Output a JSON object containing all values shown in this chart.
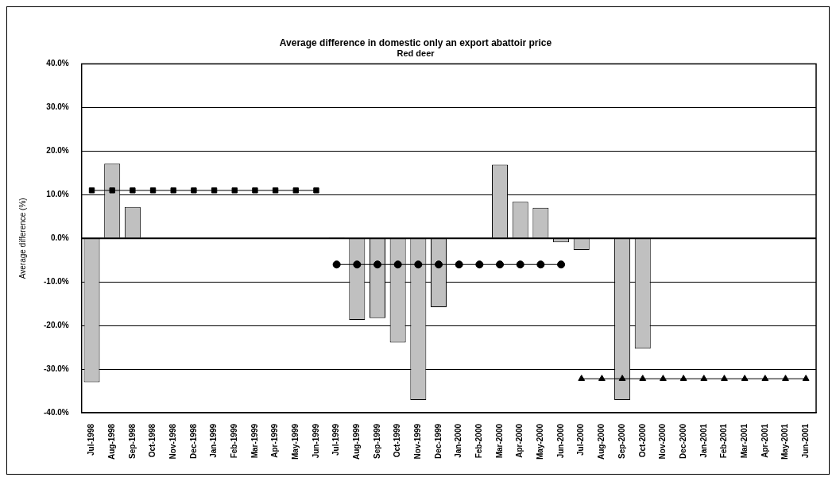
{
  "chart_data": {
    "type": "bar",
    "title": "Average difference in domestic only an export abattoir price",
    "subtitle": "Red deer",
    "ylabel": "Average difference (%)",
    "categories": [
      "Jul-1998",
      "Aug-1998",
      "Sep-1998",
      "Oct-1998",
      "Nov-1998",
      "Dec-1998",
      "Jan-1999",
      "Feb-1999",
      "Mar-1999",
      "Apr-1999",
      "May-1999",
      "Jun-1999",
      "Jul-1999",
      "Aug-1999",
      "Sep-1999",
      "Oct-1999",
      "Nov-1999",
      "Dec-1999",
      "Jan-2000",
      "Feb-2000",
      "Mar-2000",
      "Apr-2000",
      "May-2000",
      "Jun-2000",
      "Jul-2000",
      "Aug-2000",
      "Sep-2000",
      "Oct-2000",
      "Nov-2000",
      "Dec-2000",
      "Jan-2001",
      "Feb-2001",
      "Mar-2001",
      "Apr-2001",
      "May-2001",
      "Jun-2001"
    ],
    "series": [
      {
        "color": "#c0c0c0",
        "values": [
          -33.0,
          17.1,
          7.2,
          null,
          null,
          null,
          null,
          null,
          null,
          null,
          null,
          null,
          0.2,
          -18.7,
          -18.3,
          -23.9,
          -37.1,
          -15.8,
          null,
          null,
          16.9,
          8.4,
          7.0,
          -0.9,
          -2.7,
          null,
          -37.1,
          -25.3,
          null,
          null,
          null,
          null,
          null,
          null,
          null,
          null
        ]
      },
      {
        "type": "line",
        "color": "#000000",
        "marker": "square",
        "values": [
          11.0,
          11.0,
          11.0,
          11.0,
          11.0,
          11.0,
          11.0,
          11.0,
          11.0,
          11.0,
          11.0,
          11.0,
          null,
          null,
          null,
          null,
          null,
          null,
          null,
          null,
          null,
          null,
          null,
          null,
          null,
          null,
          null,
          null,
          null,
          null,
          null,
          null,
          null,
          null,
          null,
          null
        ]
      },
      {
        "type": "line",
        "color": "#000000",
        "marker": "circle",
        "values": [
          null,
          null,
          null,
          null,
          null,
          null,
          null,
          null,
          null,
          null,
          null,
          null,
          -6.0,
          -6.0,
          -6.0,
          -6.0,
          -6.0,
          -6.0,
          -6.0,
          -6.0,
          -6.0,
          -6.0,
          -6.0,
          -6.0,
          null,
          null,
          null,
          null,
          null,
          null,
          null,
          null,
          null,
          null,
          null,
          null
        ]
      },
      {
        "type": "line",
        "color": "#000000",
        "marker": "triangle",
        "values": [
          null,
          null,
          null,
          null,
          null,
          null,
          null,
          null,
          null,
          null,
          null,
          null,
          null,
          null,
          null,
          null,
          null,
          null,
          null,
          null,
          null,
          null,
          null,
          null,
          -32.2,
          -32.2,
          -32.2,
          -32.2,
          -32.2,
          -32.2,
          -32.2,
          -32.2,
          -32.2,
          -32.2,
          -32.2,
          -32.2
        ]
      }
    ],
    "ylim": [
      -40,
      40
    ],
    "yticks": [
      {
        "value": -40,
        "label": "-40.0%"
      },
      {
        "value": -30,
        "label": "-30.0%"
      },
      {
        "value": -20,
        "label": "-20.0%"
      },
      {
        "value": -10,
        "label": "-10.0%"
      },
      {
        "value": 0,
        "label": "0.0%"
      },
      {
        "value": 10,
        "label": "10.0%"
      },
      {
        "value": 20,
        "label": "20.0%"
      },
      {
        "value": 30,
        "label": "30.0%"
      },
      {
        "value": 40,
        "label": "40.0%"
      }
    ],
    "grid": "y",
    "legend": false
  }
}
